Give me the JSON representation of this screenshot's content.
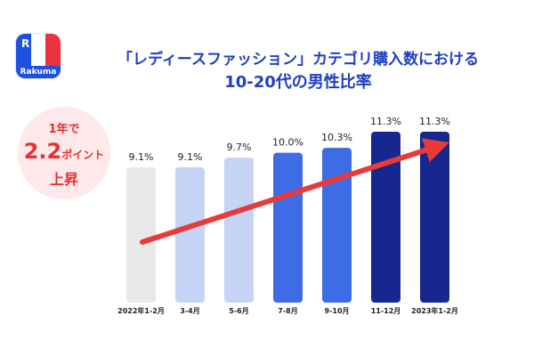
{
  "logo": {
    "name": "Rakuma"
  },
  "title": {
    "line1": "「レディースファッション」カテゴリ購入数における",
    "line2": "10-20代の男性比率"
  },
  "badge": {
    "line1": "1年で",
    "value": "2.2",
    "unit": "ポイント",
    "line3": "上昇"
  },
  "chart_data": {
    "type": "bar",
    "title": "「レディースファッション」カテゴリ購入数における10-20代の男性比率",
    "categories": [
      "2022年1-2月",
      "3-4月",
      "5-6月",
      "7-8月",
      "9-10月",
      "11-12月",
      "2023年1-2月"
    ],
    "values": [
      9.1,
      9.1,
      9.7,
      10.0,
      10.3,
      11.3,
      11.3
    ],
    "value_labels": [
      "9.1%",
      "9.1%",
      "9.7%",
      "10.0%",
      "10.3%",
      "11.3%",
      "11.3%"
    ],
    "unit": "%",
    "colors": [
      "#e8e8e8",
      "#c5d3f5",
      "#c5d3f5",
      "#3d6ce6",
      "#3d6ce6",
      "#16288f",
      "#16288f"
    ],
    "ylim": [
      0,
      12
    ],
    "trend_arrow_color": "#e83a3a",
    "xlabel": "",
    "ylabel": ""
  }
}
